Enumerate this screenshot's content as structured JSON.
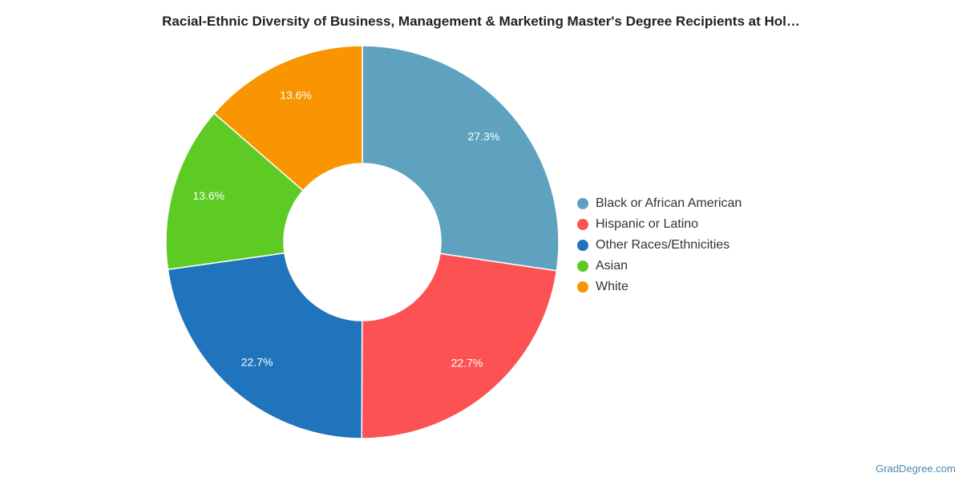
{
  "chart_data": {
    "type": "pie",
    "title": "Racial-Ethnic Diversity of Business, Management & Marketing Master's Degree Recipients at Hol…",
    "legend_position": "right",
    "slices": [
      {
        "name": "Black or African American",
        "value": 27.3,
        "label": "27.3%",
        "color": "#5ea2c0"
      },
      {
        "name": "Hispanic or Latino",
        "value": 22.7,
        "label": "22.7%",
        "color": "#fd5254"
      },
      {
        "name": "Other Races/Ethnicities",
        "value": 22.7,
        "label": "22.7%",
        "color": "#1f74bc"
      },
      {
        "name": "Asian",
        "value": 13.6,
        "label": "13.6%",
        "color": "#5ecb24"
      },
      {
        "name": "White",
        "value": 13.6,
        "label": "13.6%",
        "color": "#f89500"
      }
    ]
  },
  "source": "GradDegree.com"
}
